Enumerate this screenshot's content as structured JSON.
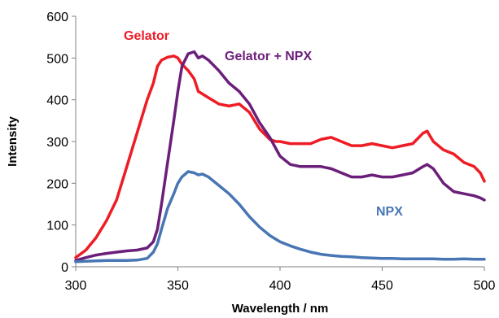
{
  "chart_data": {
    "type": "line",
    "xlabel": "Wavelength / nm",
    "ylabel": "Intensity",
    "xlim": [
      300,
      500
    ],
    "ylim": [
      0,
      600
    ],
    "x_ticks": [
      300,
      350,
      400,
      450,
      500
    ],
    "y_ticks": [
      0,
      100,
      200,
      300,
      400,
      500,
      600
    ],
    "grid": false,
    "legend": "none",
    "series": [
      {
        "name": "Gelator",
        "color": "#ee1c25",
        "x": [
          300,
          305,
          310,
          315,
          320,
          325,
          330,
          335,
          338,
          340,
          342,
          345,
          348,
          350,
          352,
          355,
          358,
          360,
          365,
          370,
          375,
          380,
          385,
          390,
          395,
          398,
          400,
          405,
          410,
          415,
          420,
          425,
          430,
          435,
          440,
          445,
          450,
          455,
          460,
          465,
          470,
          472,
          475,
          480,
          485,
          490,
          495,
          498,
          500
        ],
        "y": [
          22,
          40,
          70,
          110,
          160,
          240,
          320,
          400,
          440,
          480,
          495,
          502,
          505,
          500,
          485,
          470,
          450,
          420,
          405,
          390,
          385,
          390,
          370,
          330,
          305,
          300,
          300,
          295,
          295,
          295,
          305,
          310,
          300,
          290,
          290,
          295,
          290,
          285,
          290,
          295,
          320,
          325,
          300,
          280,
          270,
          250,
          240,
          225,
          205
        ]
      },
      {
        "name": "Gelator + NPX",
        "color": "#6b1f7a",
        "x": [
          300,
          305,
          310,
          315,
          320,
          325,
          330,
          335,
          338,
          340,
          342,
          345,
          348,
          350,
          352,
          355,
          358,
          360,
          362,
          365,
          370,
          375,
          380,
          385,
          390,
          395,
          400,
          405,
          410,
          415,
          420,
          425,
          430,
          435,
          440,
          445,
          450,
          455,
          460,
          465,
          470,
          472,
          475,
          480,
          485,
          490,
          495,
          498,
          500
        ],
        "y": [
          15,
          22,
          28,
          32,
          35,
          38,
          40,
          45,
          60,
          90,
          150,
          250,
          350,
          420,
          480,
          510,
          515,
          500,
          505,
          495,
          470,
          440,
          420,
          390,
          345,
          310,
          265,
          245,
          240,
          240,
          240,
          235,
          225,
          215,
          215,
          220,
          215,
          215,
          220,
          225,
          240,
          245,
          235,
          200,
          180,
          175,
          170,
          165,
          160
        ]
      },
      {
        "name": "NPX",
        "color": "#4876b4",
        "x": [
          300,
          305,
          310,
          315,
          320,
          325,
          330,
          335,
          338,
          340,
          342,
          345,
          348,
          350,
          352,
          355,
          358,
          360,
          362,
          365,
          370,
          375,
          380,
          385,
          390,
          395,
          400,
          405,
          410,
          415,
          420,
          425,
          430,
          435,
          440,
          445,
          450,
          455,
          460,
          465,
          470,
          475,
          480,
          485,
          490,
          495,
          500
        ],
        "y": [
          12,
          13,
          14,
          15,
          15,
          15,
          16,
          20,
          35,
          55,
          90,
          140,
          175,
          200,
          215,
          228,
          225,
          220,
          222,
          215,
          195,
          175,
          150,
          120,
          95,
          75,
          60,
          50,
          42,
          35,
          30,
          27,
          25,
          24,
          22,
          21,
          20,
          20,
          19,
          19,
          19,
          19,
          18,
          18,
          19,
          18,
          18
        ]
      }
    ]
  }
}
